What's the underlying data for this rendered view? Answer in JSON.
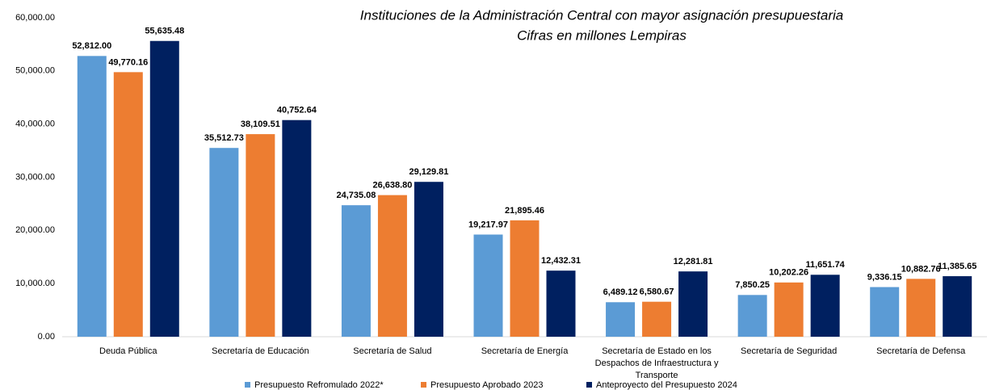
{
  "chart_data": {
    "type": "bar",
    "title": "Instituciones de la Administración Central con mayor asignación presupuestaria",
    "subtitle": "Cifras en millones Lempiras",
    "categories": [
      "Deuda Pública",
      "Secretaría de Educación",
      "Secretaría de Salud",
      "Secretaría de Energía",
      "Secretaría de Estado en los Despachos de Infraestructura y Transporte",
      "Secretaría de Seguridad",
      "Secretaría de Defensa"
    ],
    "series": [
      {
        "name": "Presupuesto Refromulado 2022*",
        "color": "#5b9bd5",
        "values": [
          52812.0,
          35512.73,
          24735.08,
          19217.97,
          6489.12,
          7850.25,
          9336.15
        ],
        "value_labels": [
          "52,812.00",
          "35,512.73",
          "24,735.08",
          "19,217.97",
          "6,489.12",
          "7,850.25",
          "9,336.15"
        ]
      },
      {
        "name": "Presupuesto Aprobado 2023",
        "color": "#ed7d31",
        "values": [
          49770.16,
          38109.51,
          26638.8,
          21895.46,
          6580.67,
          10202.26,
          10882.76
        ],
        "value_labels": [
          "49,770.16",
          "38,109.51",
          "26,638.80",
          "21,895.46",
          "6,580.67",
          "10,202.26",
          "10,882.76"
        ]
      },
      {
        "name": "Anteproyecto del Presupuesto 2024",
        "color": "#002060",
        "values": [
          55635.48,
          40752.64,
          29129.81,
          12432.31,
          12281.81,
          11651.74,
          11385.65
        ],
        "value_labels": [
          "55,635.48",
          "40,752.64",
          "29,129.81",
          "12,432.31",
          "12,281.81",
          "11,651.74",
          "11,385.65"
        ]
      }
    ],
    "ylim": [
      0,
      60000
    ],
    "yticks": [
      {
        "value": 0,
        "label": "0.00"
      },
      {
        "value": 10000,
        "label": "10,000.00"
      },
      {
        "value": 20000,
        "label": "20,000.00"
      },
      {
        "value": 30000,
        "label": "30,000.00"
      },
      {
        "value": 40000,
        "label": "40,000.00"
      },
      {
        "value": 50000,
        "label": "50,000.00"
      },
      {
        "value": 60000,
        "label": "60,000.00"
      }
    ],
    "legend": "bottom"
  }
}
